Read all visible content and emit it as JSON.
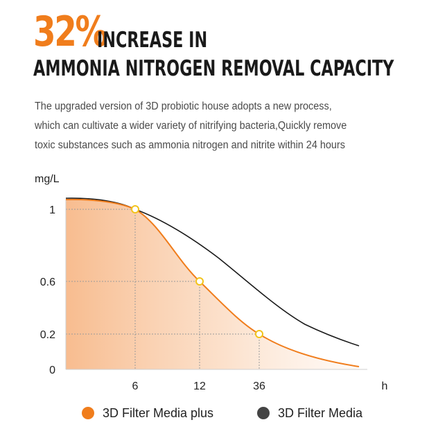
{
  "headline": {
    "percent": "32%",
    "line1": "INCREASE IN",
    "line2": "AMMONIA NITROGEN REMOVAL CAPACITY"
  },
  "description": [
    "The upgraded version of 3D probiotic house adopts a new process,",
    "which can cultivate a wider variety of nitrifying bacteria,Quickly remove",
    "toxic substances such as ammonia nitrogen and nitrite within 24 hours"
  ],
  "colors": {
    "accent": "#f07d1c",
    "dark": "#1a1a1a",
    "legend_dark": "#444444"
  },
  "chart_data": {
    "type": "line",
    "ylabel": "mg/L",
    "xlabel": "h",
    "y_ticks": [
      "1",
      "0.6",
      "0.2",
      "0"
    ],
    "x_ticks": [
      "6",
      "12",
      "36"
    ],
    "series": [
      {
        "name": "3D Filter Media plus",
        "color": "#f07d1c",
        "filled": true,
        "highlighted_points": [
          {
            "x": "6",
            "y": 1
          },
          {
            "x": "12",
            "y": 0.6
          },
          {
            "x": "36",
            "y": 0.2
          }
        ]
      },
      {
        "name": "3D Filter Media",
        "color": "#1a1a1a",
        "filled": false
      }
    ],
    "grid": "dotted guides at highlighted points",
    "legend": "bottom"
  }
}
